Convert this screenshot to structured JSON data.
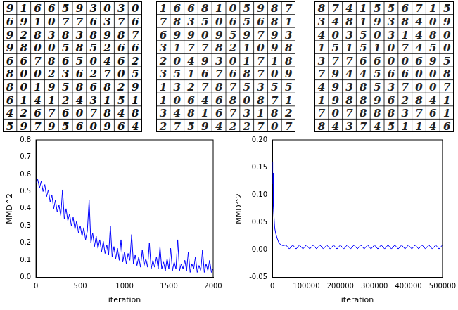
{
  "sample_grids": [
    {
      "rows": [
        [
          9,
          1,
          6,
          6,
          5,
          9,
          3,
          0,
          3,
          0
        ],
        [
          6,
          9,
          1,
          0,
          7,
          7,
          6,
          3,
          7,
          6
        ],
        [
          9,
          2,
          8,
          3,
          8,
          3,
          8,
          9,
          8,
          7
        ],
        [
          9,
          8,
          0,
          0,
          5,
          8,
          5,
          2,
          6,
          6
        ],
        [
          6,
          6,
          7,
          8,
          6,
          5,
          0,
          4,
          6,
          2
        ],
        [
          8,
          0,
          0,
          2,
          3,
          6,
          2,
          7,
          0,
          5
        ],
        [
          8,
          0,
          1,
          9,
          5,
          8,
          6,
          8,
          2,
          9
        ],
        [
          6,
          1,
          4,
          1,
          2,
          4,
          3,
          1,
          5,
          1
        ],
        [
          4,
          2,
          6,
          7,
          6,
          0,
          7,
          8,
          4,
          8
        ],
        [
          5,
          9,
          7,
          9,
          5,
          6,
          0,
          9,
          6,
          4
        ]
      ]
    },
    {
      "rows": [
        [
          1,
          6,
          6,
          8,
          1,
          0,
          5,
          9,
          8,
          7
        ],
        [
          7,
          8,
          3,
          5,
          0,
          6,
          5,
          6,
          8,
          1
        ],
        [
          6,
          9,
          9,
          0,
          9,
          5,
          9,
          7,
          9,
          3
        ],
        [
          3,
          1,
          7,
          7,
          8,
          2,
          1,
          0,
          9,
          8
        ],
        [
          2,
          0,
          4,
          9,
          3,
          0,
          1,
          7,
          1,
          8
        ],
        [
          3,
          5,
          1,
          6,
          7,
          6,
          8,
          7,
          0,
          9
        ],
        [
          1,
          3,
          2,
          7,
          8,
          7,
          5,
          3,
          5,
          5
        ],
        [
          1,
          0,
          6,
          4,
          6,
          8,
          0,
          8,
          7,
          1
        ],
        [
          3,
          4,
          8,
          1,
          6,
          7,
          3,
          1,
          8,
          2
        ],
        [
          2,
          7,
          5,
          9,
          4,
          2,
          2,
          7,
          0,
          7
        ]
      ]
    },
    {
      "rows": [
        [
          8,
          7,
          4,
          1,
          5,
          5,
          6,
          7,
          1,
          5
        ],
        [
          3,
          4,
          8,
          1,
          9,
          3,
          8,
          4,
          0,
          9
        ],
        [
          4,
          0,
          3,
          5,
          0,
          3,
          1,
          4,
          8,
          0
        ],
        [
          1,
          5,
          1,
          5,
          1,
          0,
          7,
          4,
          5,
          0
        ],
        [
          3,
          7,
          7,
          6,
          6,
          0,
          0,
          6,
          9,
          5
        ],
        [
          7,
          9,
          4,
          4,
          5,
          6,
          6,
          0,
          0,
          8
        ],
        [
          4,
          9,
          3,
          8,
          5,
          3,
          7,
          0,
          0,
          7
        ],
        [
          1,
          9,
          8,
          8,
          9,
          6,
          2,
          8,
          4,
          1
        ],
        [
          7,
          0,
          7,
          8,
          8,
          8,
          3,
          7,
          6,
          1
        ],
        [
          8,
          4,
          3,
          7,
          4,
          5,
          1,
          1,
          4,
          6
        ]
      ]
    }
  ],
  "chart_data": [
    {
      "type": "line",
      "xlabel": "iteration",
      "ylabel": "MMD^2",
      "color": "#0000ff",
      "grid": false,
      "xlim": [
        0,
        2000
      ],
      "xticks": [
        0,
        500,
        1000,
        1500,
        2000
      ],
      "ylim": [
        0,
        0.8
      ],
      "yticks": [
        {
          "value": 0,
          "label": "0.0"
        },
        0.1,
        0.2,
        0.3,
        0.4,
        0.5,
        0.6,
        0.7,
        0.8
      ],
      "x": [
        0,
        20,
        40,
        60,
        80,
        100,
        120,
        140,
        160,
        180,
        200,
        220,
        240,
        260,
        280,
        300,
        320,
        340,
        360,
        380,
        400,
        420,
        440,
        460,
        480,
        500,
        520,
        540,
        560,
        580,
        600,
        620,
        640,
        660,
        680,
        700,
        720,
        740,
        760,
        780,
        800,
        820,
        840,
        860,
        880,
        900,
        920,
        940,
        960,
        980,
        1000,
        1020,
        1040,
        1060,
        1080,
        1100,
        1120,
        1140,
        1160,
        1180,
        1200,
        1220,
        1240,
        1260,
        1280,
        1300,
        1320,
        1340,
        1360,
        1380,
        1400,
        1420,
        1440,
        1460,
        1480,
        1500,
        1520,
        1540,
        1560,
        1580,
        1600,
        1620,
        1640,
        1660,
        1680,
        1700,
        1720,
        1740,
        1760,
        1780,
        1800,
        1820,
        1840,
        1860,
        1880,
        1900,
        1920,
        1940,
        1960,
        1980,
        2000
      ],
      "values": [
        0.55,
        0.57,
        0.52,
        0.56,
        0.5,
        0.54,
        0.47,
        0.51,
        0.44,
        0.48,
        0.4,
        0.45,
        0.38,
        0.42,
        0.36,
        0.51,
        0.34,
        0.4,
        0.33,
        0.37,
        0.3,
        0.35,
        0.28,
        0.33,
        0.26,
        0.3,
        0.24,
        0.29,
        0.22,
        0.27,
        0.45,
        0.2,
        0.26,
        0.18,
        0.24,
        0.17,
        0.22,
        0.15,
        0.21,
        0.14,
        0.19,
        0.13,
        0.3,
        0.12,
        0.18,
        0.11,
        0.17,
        0.1,
        0.22,
        0.09,
        0.15,
        0.08,
        0.14,
        0.1,
        0.25,
        0.08,
        0.13,
        0.07,
        0.12,
        0.06,
        0.16,
        0.07,
        0.11,
        0.06,
        0.2,
        0.05,
        0.1,
        0.06,
        0.12,
        0.05,
        0.18,
        0.05,
        0.09,
        0.04,
        0.11,
        0.05,
        0.17,
        0.04,
        0.09,
        0.05,
        0.22,
        0.04,
        0.08,
        0.05,
        0.1,
        0.04,
        0.15,
        0.03,
        0.08,
        0.05,
        0.12,
        0.03,
        0.07,
        0.04,
        0.16,
        0.03,
        0.08,
        0.04,
        0.1,
        0.03,
        0.05
      ]
    },
    {
      "type": "line",
      "xlabel": "iteration",
      "ylabel": "MMD^2",
      "color": "#0000ff",
      "grid": false,
      "xlim": [
        0,
        500000
      ],
      "xticks": [
        0,
        100000,
        200000,
        300000,
        400000,
        500000
      ],
      "ylim": [
        -0.05,
        0.2
      ],
      "yticks": [
        -0.05,
        {
          "value": 0,
          "label": "0.00"
        },
        0.05,
        {
          "value": 0.1,
          "label": "0.10"
        },
        0.15,
        {
          "value": 0.2,
          "label": "0.20"
        }
      ],
      "x": [
        0,
        1000,
        2000,
        3000,
        5000,
        7000,
        10000,
        15000,
        20000,
        30000,
        40000,
        50000,
        60000,
        70000,
        80000,
        90000,
        100000,
        110000,
        120000,
        130000,
        140000,
        150000,
        160000,
        170000,
        180000,
        190000,
        200000,
        210000,
        220000,
        230000,
        240000,
        250000,
        260000,
        270000,
        280000,
        290000,
        300000,
        310000,
        320000,
        330000,
        340000,
        350000,
        360000,
        370000,
        380000,
        390000,
        400000,
        410000,
        420000,
        430000,
        440000,
        450000,
        460000,
        470000,
        480000,
        490000,
        500000
      ],
      "values": [
        0.16,
        0.12,
        0.14,
        0.08,
        0.06,
        0.04,
        0.03,
        0.02,
        0.012,
        0.008,
        0.009,
        0.002,
        0.009,
        0.002,
        0.009,
        0.002,
        0.009,
        0.002,
        0.009,
        0.002,
        0.009,
        0.002,
        0.009,
        0.002,
        0.009,
        0.002,
        0.009,
        0.002,
        0.009,
        0.002,
        0.009,
        0.002,
        0.009,
        0.002,
        0.009,
        0.002,
        0.009,
        0.002,
        0.009,
        0.002,
        0.009,
        0.002,
        0.009,
        0.002,
        0.009,
        0.002,
        0.009,
        0.002,
        0.009,
        0.002,
        0.009,
        0.002,
        0.009,
        0.002,
        0.009,
        0.002,
        0.009
      ]
    }
  ]
}
